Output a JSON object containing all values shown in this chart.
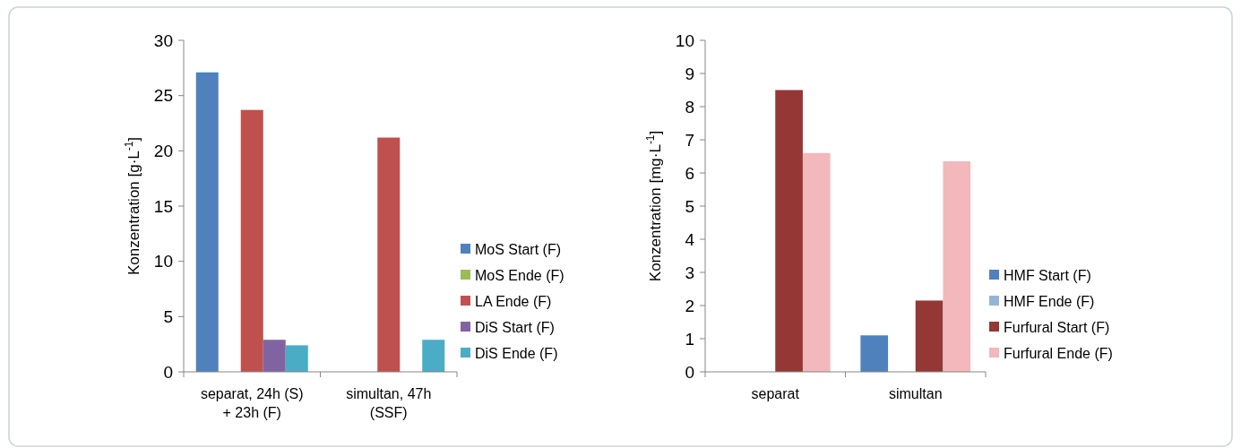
{
  "chart_data": [
    {
      "type": "bar",
      "ylabel": "Konzentration [g·L$^{-1}$]",
      "categories": [
        "separat, 24h (S) + 23h (F)",
        "simultan, 47h (SSF)"
      ],
      "ylim": [
        0,
        30
      ],
      "yticks": [
        0,
        5,
        10,
        15,
        20,
        25,
        30
      ],
      "legend": "right",
      "grid": false,
      "series": [
        {
          "name": "MoS Start (F)",
          "color": "#4f81bd",
          "values": [
            27.1,
            0
          ]
        },
        {
          "name": "MoS Ende (F)",
          "color": "#9bbb59",
          "values": [
            0,
            0
          ]
        },
        {
          "name": "LA Ende (F)",
          "color": "#c0504d",
          "values": [
            23.7,
            21.2
          ]
        },
        {
          "name": "DiS Start (F)",
          "color": "#8064a2",
          "values": [
            2.9,
            0
          ]
        },
        {
          "name": "DiS Ende (F)",
          "color": "#4bacc6",
          "values": [
            2.4,
            2.9
          ]
        }
      ]
    },
    {
      "type": "bar",
      "ylabel": "Konzentration [mg·L$^{-1}$]",
      "categories": [
        "separat",
        "simultan"
      ],
      "ylim": [
        0,
        10
      ],
      "yticks": [
        0,
        1,
        2,
        3,
        4,
        5,
        6,
        7,
        8,
        9,
        10
      ],
      "legend": "right",
      "grid": false,
      "series": [
        {
          "name": "HMF Start (F)",
          "color": "#4f81bd",
          "values": [
            0,
            1.1
          ]
        },
        {
          "name": "HMF Ende (F)",
          "color": "#95b3d7",
          "values": [
            0,
            0
          ]
        },
        {
          "name": "Furfural Start (F)",
          "color": "#953735",
          "values": [
            8.5,
            2.15
          ]
        },
        {
          "name": "Furfural Ende (F)",
          "color": "#f2b8bc",
          "values": [
            6.6,
            6.35
          ]
        }
      ]
    }
  ]
}
